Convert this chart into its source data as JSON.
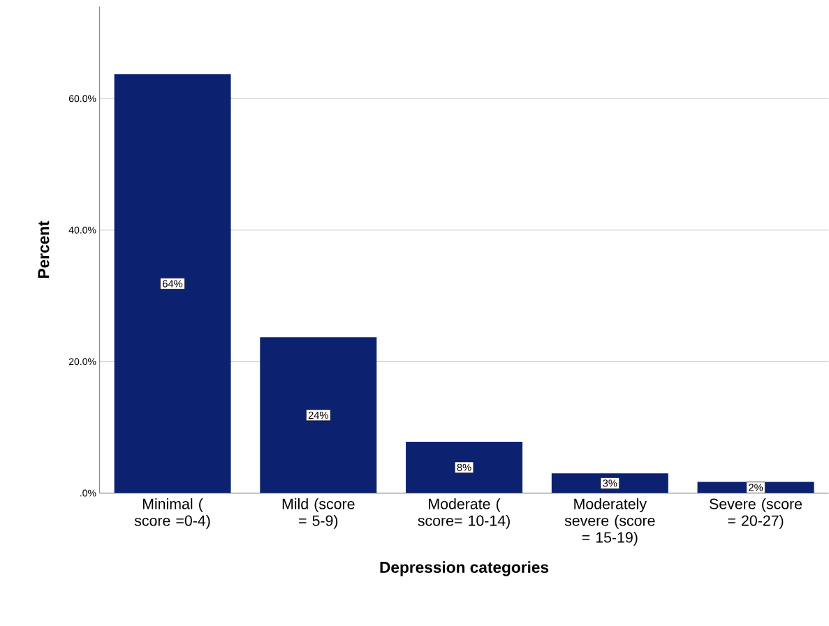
{
  "chart_data": {
    "type": "bar",
    "xlabel": "Depression categories",
    "ylabel": "Percent",
    "categories": [
      "Minimal ( score =0-4)",
      "Mild (score = 5-9)",
      "Moderate ( score= 10-14)",
      "Moderately severe (score = 15-19)",
      "Severe (score = 20-27)"
    ],
    "values": [
      63.7,
      23.7,
      7.8,
      3.0,
      1.7
    ],
    "value_labels": [
      "64%",
      "24%",
      "8%",
      "3%",
      "2%"
    ],
    "color": "#0c2270",
    "ylim": [
      0,
      74
    ],
    "yticks": [
      {
        "value": 0,
        "label": ".0%"
      },
      {
        "value": 20,
        "label": "20.0%"
      },
      {
        "value": 40,
        "label": "40.0%"
      },
      {
        "value": 60,
        "label": "60.0%"
      }
    ],
    "grid": "y"
  }
}
